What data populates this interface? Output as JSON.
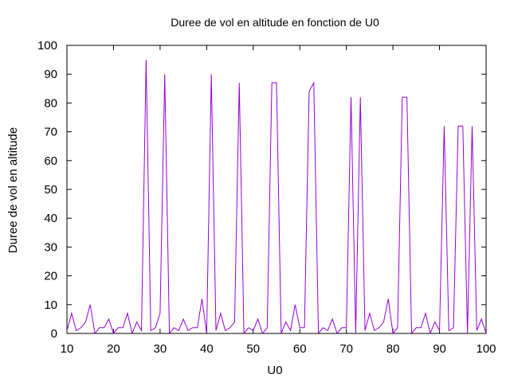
{
  "chart_data": {
    "type": "line",
    "title": "Duree de vol en altitude en fonction de U0",
    "xlabel": "U0",
    "ylabel": "Duree de vol en altitude",
    "xlim": [
      10,
      100
    ],
    "ylim": [
      0,
      100
    ],
    "xticks": [
      10,
      20,
      30,
      40,
      50,
      60,
      70,
      80,
      90,
      100
    ],
    "yticks": [
      0,
      10,
      20,
      30,
      40,
      50,
      60,
      70,
      80,
      90,
      100
    ],
    "grid": false,
    "legend": "none",
    "series": [
      {
        "color": "#9400d3",
        "x": [
          10,
          11,
          12,
          13,
          14,
          15,
          16,
          17,
          18,
          19,
          20,
          21,
          22,
          23,
          24,
          25,
          26,
          27,
          28,
          29,
          30,
          31,
          32,
          33,
          34,
          35,
          36,
          37,
          38,
          39,
          40,
          41,
          42,
          43,
          44,
          45,
          46,
          47,
          48,
          49,
          50,
          51,
          52,
          53,
          54,
          55,
          56,
          57,
          58,
          59,
          60,
          61,
          62,
          63,
          64,
          65,
          66,
          67,
          68,
          69,
          70,
          71,
          72,
          73,
          74,
          75,
          76,
          77,
          78,
          79,
          80,
          81,
          82,
          83,
          84,
          85,
          86,
          87,
          88,
          89,
          90,
          91,
          92,
          93,
          94,
          95,
          96,
          97,
          98,
          99,
          100
        ],
        "y": [
          1,
          7,
          1,
          2,
          4,
          10,
          0,
          2,
          2,
          5,
          0,
          2,
          2,
          7,
          0,
          4,
          1,
          95,
          1,
          2,
          7,
          90,
          0,
          2,
          1,
          5,
          1,
          2,
          2,
          12,
          0,
          90,
          1,
          7,
          1,
          2,
          4,
          87,
          0,
          2,
          1,
          5,
          0,
          2,
          87,
          87,
          0,
          4,
          1,
          10,
          2,
          2,
          84,
          87,
          0,
          2,
          1,
          5,
          0,
          2,
          2,
          82,
          0,
          82,
          1,
          7,
          1,
          2,
          4,
          12,
          0,
          2,
          82,
          82,
          0,
          2,
          2,
          7,
          0,
          4,
          1,
          72,
          1,
          2,
          72,
          72,
          0,
          72,
          1,
          5,
          0
        ]
      }
    ]
  }
}
